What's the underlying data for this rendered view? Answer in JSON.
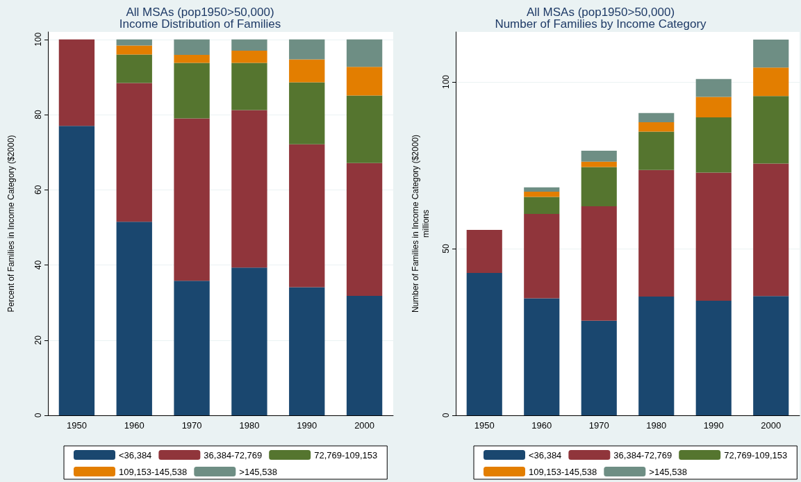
{
  "chart_data": [
    {
      "type": "bar",
      "title": "All MSAs (pop1950>50,000)",
      "subtitle": "Income Distribution of Families",
      "ylabel": "Percent of Families in Income Category ($2000)",
      "categories": [
        "1950",
        "1960",
        "1970",
        "1980",
        "1990",
        "2000"
      ],
      "stacked": true,
      "ylim": [
        0,
        102
      ],
      "yticks": [
        0,
        20,
        40,
        60,
        80,
        100
      ],
      "grid": "y",
      "legend": "bottom",
      "series": [
        {
          "name": "<36,384",
          "color": "#1a476f",
          "values": [
            77.0,
            51.5,
            35.8,
            39.3,
            34.1,
            31.8
          ]
        },
        {
          "name": "36,384-72,769",
          "color": "#90353b",
          "values": [
            23.0,
            36.9,
            43.2,
            41.9,
            38.0,
            35.3
          ]
        },
        {
          "name": "72,769-109,153",
          "color": "#55752f",
          "values": [
            null,
            7.6,
            14.8,
            12.6,
            16.5,
            18.0
          ]
        },
        {
          "name": "109,153-145,538",
          "color": "#e37e00",
          "values": [
            null,
            2.4,
            2.1,
            3.2,
            6.1,
            7.6
          ]
        },
        {
          "name": ">145,538",
          "color": "#6e8e84",
          "values": [
            null,
            1.6,
            4.1,
            3.0,
            5.3,
            7.3
          ]
        }
      ]
    },
    {
      "type": "bar",
      "title": "All MSAs (pop1950>50,000)",
      "subtitle": "Number of Families by Income Category",
      "ylabel": "Number of Families in Income Category ($2000)\nmillions",
      "categories": [
        "1950",
        "1960",
        "1970",
        "1980",
        "1990",
        "2000"
      ],
      "stacked": true,
      "ylim": [
        0,
        115
      ],
      "yticks": [
        0,
        50,
        100
      ],
      "grid": "y",
      "legend": "bottom",
      "series": [
        {
          "name": "<36,384",
          "color": "#1a476f",
          "values": [
            42.7,
            35.1,
            28.4,
            35.6,
            34.4,
            35.8
          ]
        },
        {
          "name": "36,384-72,769",
          "color": "#90353b",
          "values": [
            12.9,
            25.3,
            34.3,
            38.0,
            38.4,
            39.7
          ]
        },
        {
          "name": "72,769-109,153",
          "color": "#55752f",
          "values": [
            null,
            5.1,
            11.8,
            11.5,
            16.6,
            20.3
          ]
        },
        {
          "name": "109,153-145,538",
          "color": "#e37e00",
          "values": [
            null,
            1.6,
            1.6,
            2.8,
            6.1,
            8.5
          ]
        },
        {
          "name": ">145,538",
          "color": "#6e8e84",
          "values": [
            null,
            1.3,
            3.3,
            2.8,
            5.4,
            8.4
          ]
        }
      ]
    }
  ]
}
